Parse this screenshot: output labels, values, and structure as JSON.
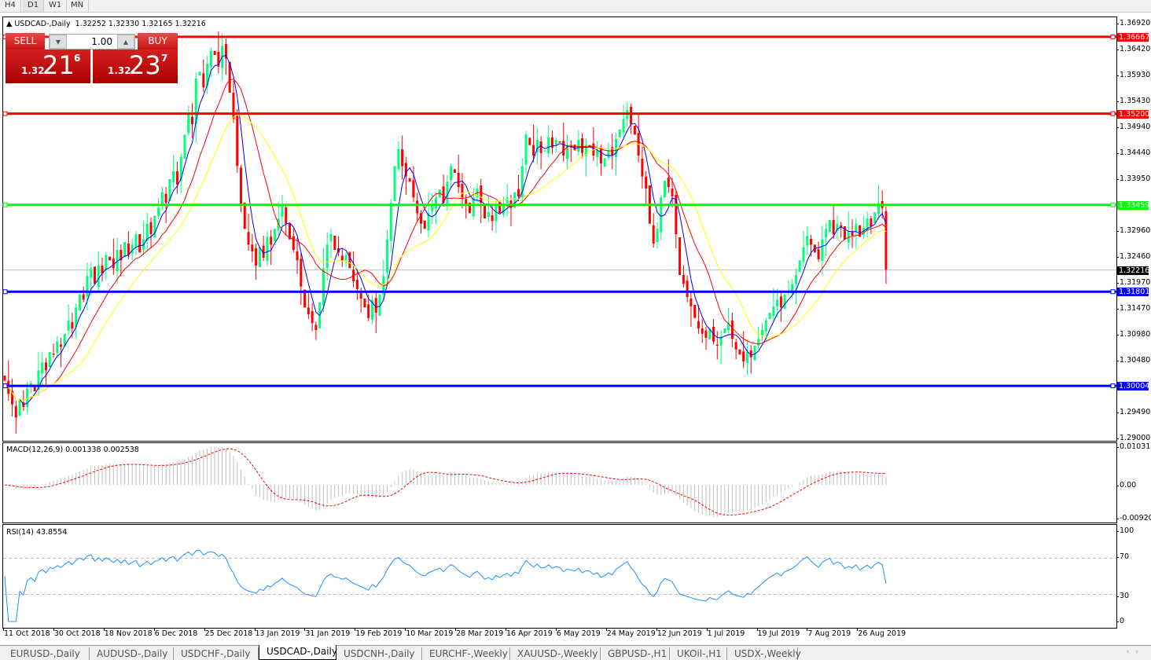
{
  "timeframes": [
    "H4",
    "D1",
    "W1",
    "MN"
  ],
  "active_timeframe": "D1",
  "chart": {
    "title": "USDCAD-,Daily",
    "ohlc": "1.32252 1.32330 1.32165 1.32216"
  },
  "trade_panel": {
    "sell_label": "SELL",
    "buy_label": "BUY",
    "lot": "1.00",
    "sell_prefix": "1.32",
    "sell_big": "21",
    "sell_sup": "6",
    "buy_prefix": "1.32",
    "buy_big": "23",
    "buy_sup": "7"
  },
  "price_axis": [
    "1.36920",
    "1.36420",
    "1.35930",
    "1.35430",
    "1.34940",
    "1.34440",
    "1.33950",
    "1.32960",
    "1.32460",
    "1.31970",
    "1.31470",
    "1.30980",
    "1.30480",
    "1.29490",
    "1.29000"
  ],
  "levels": [
    {
      "value": "1.36667",
      "color": "#ff0000"
    },
    {
      "value": "1.35200",
      "color": "#ff0000"
    },
    {
      "value": "1.33459",
      "color": "#00ff00"
    },
    {
      "value": "1.31801",
      "color": "#0000ff"
    },
    {
      "value": "1.30004",
      "color": "#0000ff"
    }
  ],
  "current_price": "1.32216",
  "macd": {
    "title": "MACD(12,26,9) 0.001338 0.002538",
    "axis": [
      "0.010311",
      "0.00",
      "-0.009203"
    ]
  },
  "rsi": {
    "title": "RSI(14) 43.8554",
    "axis": [
      "100",
      "70",
      "30",
      "0"
    ]
  },
  "dates": [
    "11 Oct 2018",
    "30 Oct 2018",
    "18 Nov 2018",
    "6 Dec 2018",
    "25 Dec 2018",
    "13 Jan 2019",
    "31 Jan 2019",
    "19 Feb 2019",
    "10 Mar 2019",
    "28 Mar 2019",
    "16 Apr 2019",
    "6 May 2019",
    "24 May 2019",
    "12 Jun 2019",
    "1 Jul 2019",
    "19 Jul 2019",
    "7 Aug 2019",
    "26 Aug 2019"
  ],
  "tabs": [
    "EURUSD-,Daily",
    "AUDUSD-,Daily",
    "USDCHF-,Daily",
    "USDCAD-,Daily",
    "USDCNH-,Daily",
    "EURCHF-,Weekly",
    "XAUUSD-,Weekly",
    "GBPUSD-,H1",
    "UKOil-,H1",
    "USDX-,Weekly"
  ],
  "active_tab": "USDCAD-,Daily",
  "chart_data": {
    "type": "candlestick",
    "symbol": "USDCAD-",
    "period": "Daily",
    "ylim": [
      1.29,
      1.3692
    ],
    "bull_color": "#00ff7f",
    "bear_color": "#ff0000",
    "ma_colors": [
      "#0000ff",
      "#ff0000",
      "#ffff00"
    ],
    "close": [
      1.301,
      1.2985,
      1.2965,
      1.294,
      1.2975,
      1.296,
      1.2995,
      1.3005,
      1.299,
      1.303,
      1.3045,
      1.303,
      1.3065,
      1.306,
      1.3085,
      1.3075,
      1.31,
      1.3125,
      1.311,
      1.315,
      1.3175,
      1.3165,
      1.321,
      1.3225,
      1.3195,
      1.323,
      1.3215,
      1.325,
      1.324,
      1.3225,
      1.326,
      1.324,
      1.3275,
      1.325,
      1.327,
      1.329,
      1.3255,
      1.328,
      1.331,
      1.329,
      1.3325,
      1.334,
      1.337,
      1.335,
      1.3395,
      1.341,
      1.3385,
      1.3437,
      1.348,
      1.352,
      1.35,
      1.3587,
      1.36,
      1.357,
      1.3615,
      1.364,
      1.3632,
      1.361,
      1.365,
      1.3625,
      1.356,
      1.351,
      1.342,
      1.3347,
      1.33,
      1.327,
      1.3257,
      1.323,
      1.3265,
      1.3245,
      1.3285,
      1.327,
      1.33,
      1.332,
      1.3347,
      1.331,
      1.328,
      1.326,
      1.324,
      1.319,
      1.315,
      1.3137,
      1.312,
      1.3107,
      1.316,
      1.3225,
      1.327,
      1.329,
      1.326,
      1.3255,
      1.324,
      1.325,
      1.3225,
      1.32,
      1.3185,
      1.3167,
      1.315,
      1.313,
      1.3165,
      1.314,
      1.3175,
      1.321,
      1.328,
      1.335,
      1.342,
      1.3452,
      1.342,
      1.34,
      1.339,
      1.336,
      1.333,
      1.331,
      1.33,
      1.333,
      1.3345,
      1.336,
      1.3375,
      1.335,
      1.339,
      1.342,
      1.3407,
      1.338,
      1.336,
      1.3347,
      1.333,
      1.336,
      1.3377,
      1.335,
      1.332,
      1.3332,
      1.3315,
      1.3345,
      1.333,
      1.3347,
      1.336,
      1.334,
      1.337,
      1.3362,
      1.342,
      1.348,
      1.346,
      1.344,
      1.347,
      1.3445,
      1.345,
      1.3475,
      1.3455,
      1.347,
      1.3465,
      1.344,
      1.346,
      1.3455,
      1.345,
      1.347,
      1.3445,
      1.346,
      1.3457,
      1.344,
      1.345,
      1.3425,
      1.3435,
      1.345,
      1.344,
      1.3472,
      1.349,
      1.351,
      1.3527,
      1.35,
      1.348,
      1.344,
      1.34,
      1.3377,
      1.331,
      1.3272,
      1.33,
      1.336,
      1.3392,
      1.338,
      1.3362,
      1.329,
      1.3212,
      1.3195,
      1.317,
      1.3152,
      1.313,
      1.311,
      1.31,
      1.3092,
      1.311,
      1.3085,
      1.3077,
      1.3095,
      1.311,
      1.3122,
      1.309,
      1.307,
      1.306,
      1.3047,
      1.3065,
      1.3055,
      1.3077,
      1.309,
      1.3107,
      1.3125,
      1.314,
      1.3152,
      1.3165,
      1.315,
      1.3175,
      1.3182,
      1.3195,
      1.3212,
      1.324,
      1.3265,
      1.3287,
      1.327,
      1.3255,
      1.3242,
      1.328,
      1.33,
      1.3317,
      1.329,
      1.331,
      1.3302,
      1.328,
      1.3295,
      1.3287,
      1.331,
      1.3285,
      1.3302,
      1.332,
      1.3305,
      1.3332,
      1.335,
      1.334,
      1.3222
    ]
  }
}
